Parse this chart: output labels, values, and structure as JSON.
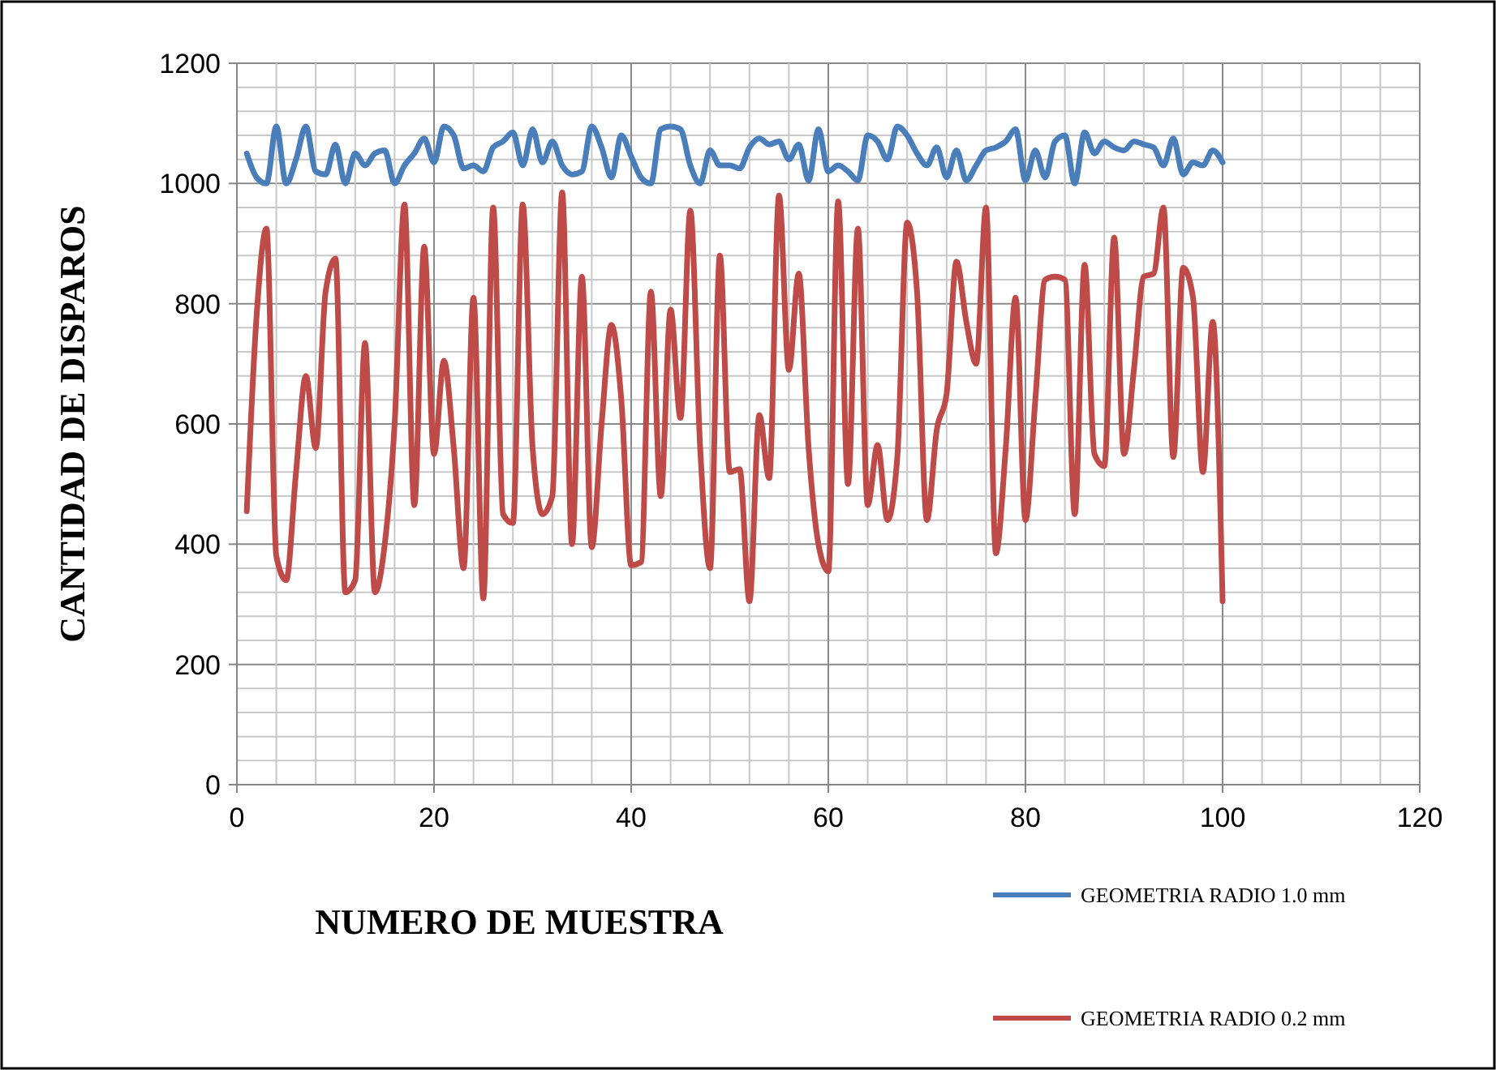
{
  "chart_data": {
    "type": "line",
    "xlabel": "NUMERO DE MUESTRA",
    "ylabel": "CANTIDAD DE DISPAROS",
    "x": [
      1,
      2,
      3,
      4,
      5,
      6,
      7,
      8,
      9,
      10,
      11,
      12,
      13,
      14,
      15,
      16,
      17,
      18,
      19,
      20,
      21,
      22,
      23,
      24,
      25,
      26,
      27,
      28,
      29,
      30,
      31,
      32,
      33,
      34,
      35,
      36,
      37,
      38,
      39,
      40,
      41,
      42,
      43,
      44,
      45,
      46,
      47,
      48,
      49,
      50,
      51,
      52,
      53,
      54,
      55,
      56,
      57,
      58,
      59,
      60,
      61,
      62,
      63,
      64,
      65,
      66,
      67,
      68,
      69,
      70,
      71,
      72,
      73,
      74,
      75,
      76,
      77,
      78,
      79,
      80,
      81,
      82,
      83,
      84,
      85,
      86,
      87,
      88,
      89,
      90,
      91,
      92,
      93,
      94,
      95,
      96,
      97,
      98,
      99,
      100
    ],
    "series": [
      {
        "name": "GEOMETRIA RADIO 1.0 mm",
        "color": "#4a7ebb",
        "values": [
          1050,
          1010,
          1000,
          1095,
          1000,
          1040,
          1095,
          1020,
          1015,
          1065,
          1000,
          1050,
          1030,
          1050,
          1055,
          1000,
          1030,
          1050,
          1075,
          1035,
          1095,
          1080,
          1025,
          1030,
          1020,
          1060,
          1070,
          1085,
          1030,
          1090,
          1035,
          1070,
          1030,
          1015,
          1020,
          1095,
          1060,
          1010,
          1080,
          1045,
          1010,
          1000,
          1090,
          1095,
          1090,
          1030,
          1000,
          1055,
          1030,
          1030,
          1025,
          1060,
          1075,
          1065,
          1070,
          1040,
          1065,
          1005,
          1090,
          1020,
          1030,
          1020,
          1005,
          1080,
          1070,
          1040,
          1095,
          1080,
          1050,
          1030,
          1060,
          1010,
          1055,
          1005,
          1030,
          1055,
          1060,
          1070,
          1090,
          1005,
          1055,
          1010,
          1070,
          1080,
          1000,
          1085,
          1050,
          1070,
          1060,
          1055,
          1070,
          1065,
          1060,
          1030,
          1075,
          1015,
          1035,
          1030,
          1055,
          1035
        ]
      },
      {
        "name": "GEOMETRIA RADIO 0.2 mm",
        "color": "#be4b48",
        "values": [
          455,
          780,
          925,
          380,
          340,
          520,
          680,
          560,
          820,
          875,
          320,
          340,
          735,
          320,
          400,
          600,
          965,
          465,
          895,
          550,
          705,
          560,
          360,
          810,
          310,
          960,
          450,
          435,
          965,
          560,
          450,
          480,
          985,
          400,
          845,
          395,
          600,
          765,
          640,
          365,
          370,
          820,
          480,
          790,
          610,
          955,
          560,
          360,
          880,
          520,
          525,
          305,
          615,
          510,
          980,
          690,
          850,
          560,
          400,
          355,
          970,
          500,
          925,
          465,
          565,
          440,
          545,
          935,
          820,
          440,
          590,
          650,
          870,
          770,
          700,
          960,
          385,
          560,
          810,
          440,
          640,
          840,
          845,
          840,
          450,
          865,
          550,
          530,
          910,
          550,
          690,
          845,
          850,
          960,
          545,
          860,
          810,
          520,
          770,
          305
        ]
      }
    ],
    "xlim": [
      0,
      120
    ],
    "xticks": [
      0,
      {
        "value": 4,
        "label": null
      },
      {
        "value": 8,
        "label": null
      },
      {
        "value": 12,
        "label": null
      },
      {
        "value": 16,
        "label": null
      },
      20,
      {
        "value": 24,
        "label": null
      },
      {
        "value": 28,
        "label": null
      },
      {
        "value": 32,
        "label": null
      },
      {
        "value": 36,
        "label": null
      },
      40,
      {
        "value": 44,
        "label": null
      },
      {
        "value": 48,
        "label": null
      },
      {
        "value": 52,
        "label": null
      },
      {
        "value": 56,
        "label": null
      },
      60,
      {
        "value": 64,
        "label": null
      },
      {
        "value": 68,
        "label": null
      },
      {
        "value": 72,
        "label": null
      },
      {
        "value": 76,
        "label": null
      },
      80,
      {
        "value": 84,
        "label": null
      },
      {
        "value": 88,
        "label": null
      },
      {
        "value": 92,
        "label": null
      },
      {
        "value": 96,
        "label": null
      },
      100,
      {
        "value": 104,
        "label": null
      },
      {
        "value": 108,
        "label": null
      },
      {
        "value": 112,
        "label": null
      },
      {
        "value": 116,
        "label": null
      },
      120
    ],
    "ylim": [
      0,
      1200
    ],
    "yticks": [
      0,
      {
        "value": 40,
        "label": null
      },
      {
        "value": 80,
        "label": null
      },
      {
        "value": 120,
        "label": null
      },
      {
        "value": 160,
        "label": null
      },
      200,
      {
        "value": 240,
        "label": null
      },
      {
        "value": 280,
        "label": null
      },
      {
        "value": 320,
        "label": null
      },
      {
        "value": 360,
        "label": null
      },
      400,
      {
        "value": 440,
        "label": null
      },
      {
        "value": 480,
        "label": null
      },
      {
        "value": 520,
        "label": null
      },
      {
        "value": 560,
        "label": null
      },
      600,
      {
        "value": 640,
        "label": null
      },
      {
        "value": 680,
        "label": null
      },
      {
        "value": 720,
        "label": null
      },
      {
        "value": 760,
        "label": null
      },
      800,
      {
        "value": 840,
        "label": null
      },
      {
        "value": 880,
        "label": null
      },
      {
        "value": 920,
        "label": null
      },
      {
        "value": 960,
        "label": null
      },
      1000,
      {
        "value": 1040,
        "label": null
      },
      {
        "value": 1080,
        "label": null
      },
      {
        "value": 1120,
        "label": null
      },
      {
        "value": 1160,
        "label": null
      },
      1200
    ],
    "grid": true,
    "legend": "bottom right",
    "line_style": "solid"
  }
}
